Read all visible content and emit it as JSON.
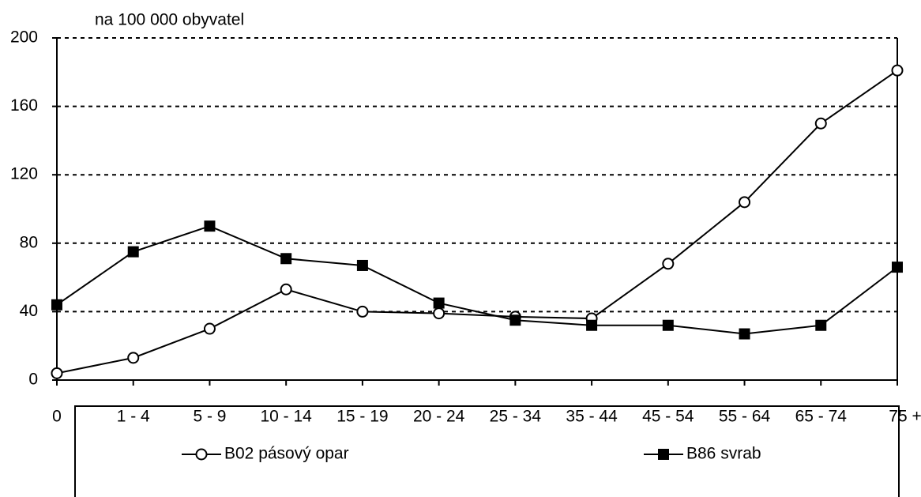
{
  "chart_data": {
    "type": "line",
    "y_label": "na 100 000 obyvatel",
    "categories": [
      "0",
      "1 - 4",
      "5 - 9",
      "10 - 14",
      "15 - 19",
      "20 - 24",
      "25 - 34",
      "35 - 44",
      "45 - 54",
      "55 - 64",
      "65 - 74",
      "75 +"
    ],
    "series": [
      {
        "name": "B02 pásový opar",
        "color": "#000000",
        "marker": "open-circle",
        "values": [
          4,
          13,
          30,
          53,
          40,
          39,
          37,
          36,
          68,
          104,
          150,
          181
        ]
      },
      {
        "name": "B86 svrab",
        "color": "#000000",
        "marker": "filled-square",
        "values": [
          44,
          75,
          90,
          71,
          67,
          45,
          35,
          32,
          32,
          27,
          32,
          66
        ]
      }
    ],
    "ylim": [
      0,
      200
    ],
    "yticks": [
      0,
      40,
      80,
      120,
      160,
      200
    ],
    "grid": true,
    "legend": "bottom"
  }
}
